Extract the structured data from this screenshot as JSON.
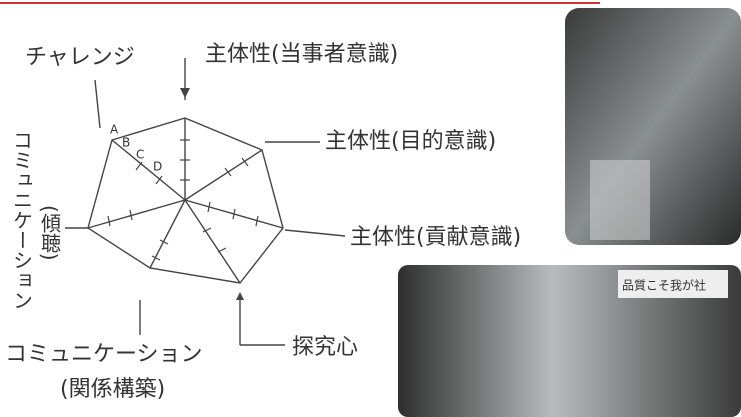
{
  "nodes": [
    {
      "label": "主体性(当事者意識)"
    },
    {
      "label": "主体性(目的意識)"
    },
    {
      "label": "主体性(貢献意識)"
    },
    {
      "label": "探究心"
    },
    {
      "label": "コミュニケーション",
      "sublabel": "(関係構築)"
    },
    {
      "label": "コミュニケーション",
      "sublabel": "(傾聴)"
    },
    {
      "label": "チャレンジ"
    }
  ],
  "scale": [
    "A",
    "B",
    "C",
    "D"
  ],
  "photo_sign": "品質こそ我が社"
}
